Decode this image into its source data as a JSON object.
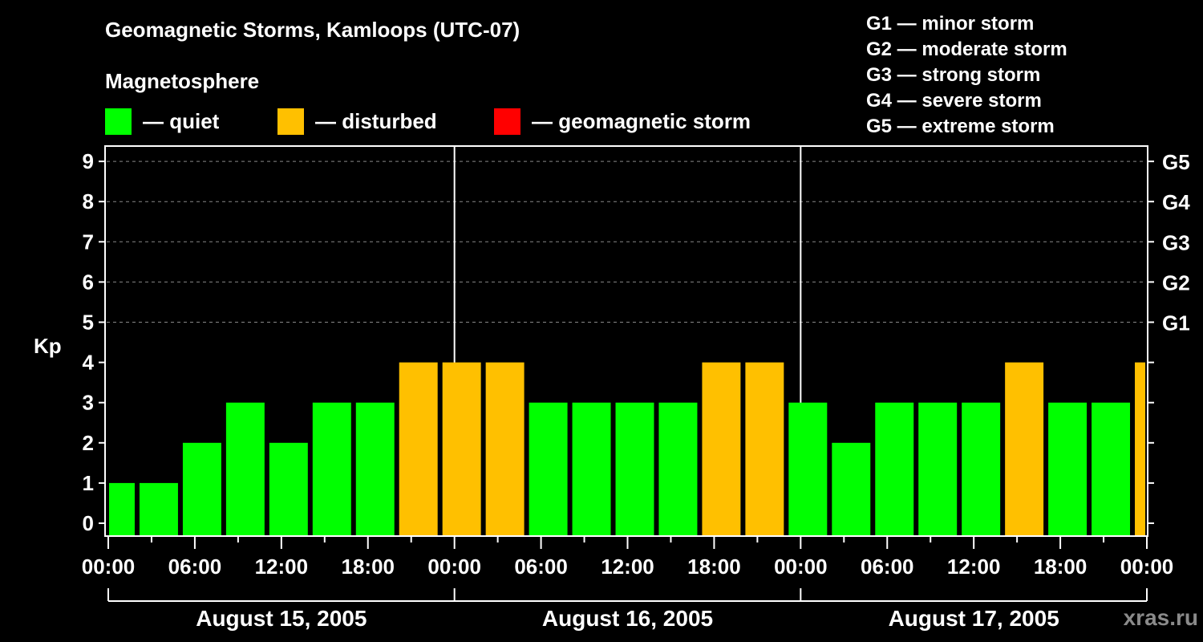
{
  "title": "Geomagnetic Storms, Kamloops (UTC-07)",
  "subtitle": "Magnetosphere",
  "legend": [
    {
      "label": "— quiet",
      "color": "#00FF00"
    },
    {
      "label": "— disturbed",
      "color": "#FFC000"
    },
    {
      "label": "— geomagnetic storm",
      "color": "#FF0000"
    }
  ],
  "g_legend": [
    "G1 — minor storm",
    "G2 — moderate storm",
    "G3 — strong storm",
    "G4 — severe storm",
    "G5 — extreme storm"
  ],
  "watermark": "xras.ru",
  "chart_data": {
    "type": "bar",
    "title": "Geomagnetic Storms, Kamloops (UTC-07)",
    "ylabel": "Kp",
    "ylim": [
      0,
      9
    ],
    "yticks": [
      0,
      1,
      2,
      3,
      4,
      5,
      6,
      7,
      8,
      9
    ],
    "y2ticks": [
      {
        "kp": 5,
        "label": "G1"
      },
      {
        "kp": 6,
        "label": "G2"
      },
      {
        "kp": 7,
        "label": "G3"
      },
      {
        "kp": 8,
        "label": "G4"
      },
      {
        "kp": 9,
        "label": "G5"
      }
    ],
    "grid": "dashed horizontal at Kp 5-9",
    "xticks": [
      "00:00",
      "06:00",
      "12:00",
      "18:00",
      "00:00",
      "06:00",
      "12:00",
      "18:00",
      "00:00",
      "06:00",
      "12:00",
      "18:00",
      "00:00"
    ],
    "days": [
      "August 15, 2005",
      "August 16, 2005",
      "August 17, 2005"
    ],
    "colors": {
      "quiet": "#00FF00",
      "disturbed": "#FFC000",
      "storm": "#FF0000"
    },
    "bars": [
      {
        "start_h": 0,
        "end_h": 2,
        "kp": 1,
        "state": "quiet"
      },
      {
        "start_h": 2,
        "end_h": 5,
        "kp": 1,
        "state": "quiet"
      },
      {
        "start_h": 5,
        "end_h": 8,
        "kp": 2,
        "state": "quiet"
      },
      {
        "start_h": 8,
        "end_h": 11,
        "kp": 3,
        "state": "quiet"
      },
      {
        "start_h": 11,
        "end_h": 14,
        "kp": 2,
        "state": "quiet"
      },
      {
        "start_h": 14,
        "end_h": 17,
        "kp": 3,
        "state": "quiet"
      },
      {
        "start_h": 17,
        "end_h": 20,
        "kp": 3,
        "state": "quiet"
      },
      {
        "start_h": 20,
        "end_h": 23,
        "kp": 4,
        "state": "disturbed"
      },
      {
        "start_h": 23,
        "end_h": 26,
        "kp": 4,
        "state": "disturbed"
      },
      {
        "start_h": 26,
        "end_h": 29,
        "kp": 4,
        "state": "disturbed"
      },
      {
        "start_h": 29,
        "end_h": 32,
        "kp": 3,
        "state": "quiet"
      },
      {
        "start_h": 32,
        "end_h": 35,
        "kp": 3,
        "state": "quiet"
      },
      {
        "start_h": 35,
        "end_h": 38,
        "kp": 3,
        "state": "quiet"
      },
      {
        "start_h": 38,
        "end_h": 41,
        "kp": 3,
        "state": "quiet"
      },
      {
        "start_h": 41,
        "end_h": 44,
        "kp": 4,
        "state": "disturbed"
      },
      {
        "start_h": 44,
        "end_h": 47,
        "kp": 4,
        "state": "disturbed"
      },
      {
        "start_h": 47,
        "end_h": 50,
        "kp": 3,
        "state": "quiet"
      },
      {
        "start_h": 50,
        "end_h": 53,
        "kp": 2,
        "state": "quiet"
      },
      {
        "start_h": 53,
        "end_h": 56,
        "kp": 3,
        "state": "quiet"
      },
      {
        "start_h": 56,
        "end_h": 59,
        "kp": 3,
        "state": "quiet"
      },
      {
        "start_h": 59,
        "end_h": 62,
        "kp": 3,
        "state": "quiet"
      },
      {
        "start_h": 62,
        "end_h": 65,
        "kp": 4,
        "state": "disturbed"
      },
      {
        "start_h": 65,
        "end_h": 68,
        "kp": 3,
        "state": "quiet"
      },
      {
        "start_h": 68,
        "end_h": 71,
        "kp": 3,
        "state": "quiet"
      },
      {
        "start_h": 71,
        "end_h": 72,
        "kp": 4,
        "state": "disturbed"
      }
    ]
  }
}
